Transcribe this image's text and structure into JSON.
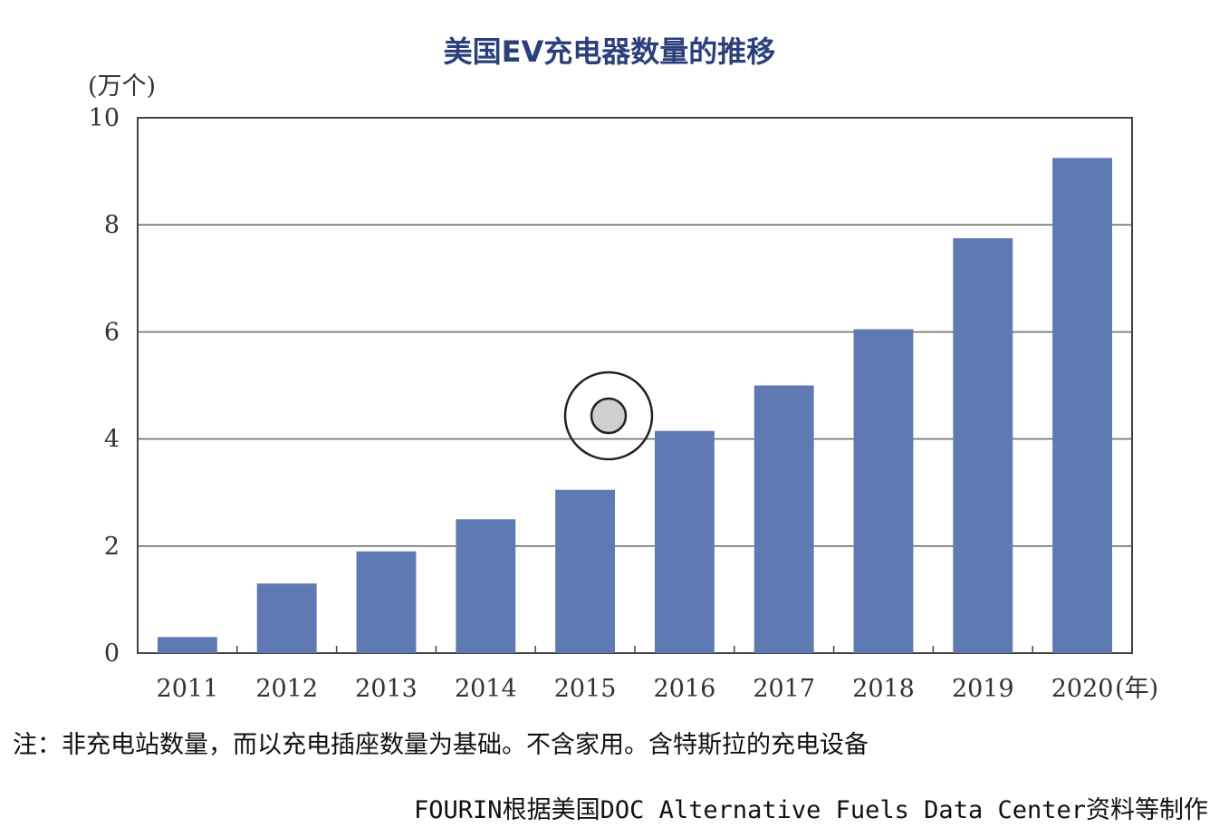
{
  "chart_data": {
    "type": "bar",
    "title": "美国EV充电器数量的推移",
    "ylabel": "(万个)",
    "xlabel": "(年)",
    "categories": [
      "2011",
      "2012",
      "2013",
      "2014",
      "2015",
      "2016",
      "2017",
      "2018",
      "2019",
      "2020"
    ],
    "values": [
      0.3,
      1.3,
      1.9,
      2.5,
      3.05,
      4.15,
      5.0,
      6.05,
      7.75,
      9.25
    ],
    "ylim": [
      0,
      10
    ],
    "yticks": [
      "0",
      "2",
      "4",
      "6",
      "8",
      "10"
    ],
    "grid": true,
    "bar_color": "#5f79b3"
  },
  "note": "注：非充电站数量，而以充电插座数量为基础。不含家用。含特斯拉的充电设备",
  "source": "FOURIN根据美国DOC Alternative Fuels Data Center资料等制作"
}
